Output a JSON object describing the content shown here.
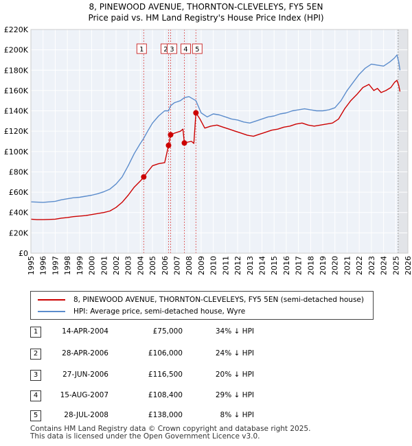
{
  "chart_data": {
    "type": "line",
    "title": "8, PINEWOOD AVENUE, THORNTON-CLEVELEYS, FY5 5EN",
    "subtitle": "Price paid vs. HM Land Registry's House Price Index (HPI)",
    "x_range": [
      1995,
      2026
    ],
    "ylim": [
      0,
      220000
    ],
    "y_ticks": [
      0,
      20000,
      40000,
      60000,
      80000,
      100000,
      120000,
      140000,
      160000,
      180000,
      200000,
      220000
    ],
    "y_tick_labels": [
      "£0",
      "£20K",
      "£40K",
      "£60K",
      "£80K",
      "£100K",
      "£120K",
      "£140K",
      "£160K",
      "£180K",
      "£200K",
      "£220K"
    ],
    "x_ticks": [
      "1995",
      "1996",
      "1997",
      "1998",
      "1999",
      "2000",
      "2001",
      "2002",
      "2003",
      "2004",
      "2005",
      "2006",
      "2007",
      "2008",
      "2009",
      "2010",
      "2011",
      "2012",
      "2013",
      "2014",
      "2015",
      "2016",
      "2017",
      "2018",
      "2019",
      "2020",
      "2021",
      "2022",
      "2023",
      "2024",
      "2025",
      "2026"
    ],
    "grid": true,
    "shaded_region_start": 2025.2,
    "series": [
      {
        "name": "8, PINEWOOD AVENUE, THORNTON-CLEVELEYS, FY5 5EN (semi-detached house)",
        "color": "#cc0000",
        "points": [
          [
            1995.0,
            33500
          ],
          [
            1995.5,
            33000
          ],
          [
            1996.0,
            33000
          ],
          [
            1996.5,
            33200
          ],
          [
            1997.0,
            33500
          ],
          [
            1997.5,
            34500
          ],
          [
            1998.0,
            35000
          ],
          [
            1998.5,
            36000
          ],
          [
            1999.0,
            36500
          ],
          [
            1999.5,
            37000
          ],
          [
            2000.0,
            38000
          ],
          [
            2000.5,
            39000
          ],
          [
            2001.0,
            40000
          ],
          [
            2001.5,
            41500
          ],
          [
            2002.0,
            45000
          ],
          [
            2002.5,
            50000
          ],
          [
            2003.0,
            57000
          ],
          [
            2003.5,
            65000
          ],
          [
            2004.0,
            71000
          ],
          [
            2004.28,
            75000
          ],
          [
            2004.6,
            80000
          ],
          [
            2005.0,
            86000
          ],
          [
            2005.5,
            88000
          ],
          [
            2006.0,
            89000
          ],
          [
            2006.32,
            106000
          ],
          [
            2006.49,
            116500
          ],
          [
            2006.8,
            118000
          ],
          [
            2007.3,
            120000
          ],
          [
            2007.5,
            122000
          ],
          [
            2007.62,
            108400
          ],
          [
            2007.8,
            109000
          ],
          [
            2008.2,
            110000
          ],
          [
            2008.4,
            108000
          ],
          [
            2008.57,
            138000
          ],
          [
            2008.9,
            132000
          ],
          [
            2009.3,
            123000
          ],
          [
            2009.8,
            125000
          ],
          [
            2010.3,
            126000
          ],
          [
            2010.8,
            124000
          ],
          [
            2011.3,
            122000
          ],
          [
            2011.8,
            120000
          ],
          [
            2012.3,
            118000
          ],
          [
            2012.8,
            116000
          ],
          [
            2013.3,
            115000
          ],
          [
            2013.8,
            117000
          ],
          [
            2014.3,
            119000
          ],
          [
            2014.8,
            121000
          ],
          [
            2015.3,
            122000
          ],
          [
            2015.8,
            124000
          ],
          [
            2016.3,
            125000
          ],
          [
            2016.8,
            127000
          ],
          [
            2017.3,
            128000
          ],
          [
            2017.8,
            126000
          ],
          [
            2018.3,
            125000
          ],
          [
            2018.8,
            126000
          ],
          [
            2019.3,
            127000
          ],
          [
            2019.8,
            128000
          ],
          [
            2020.3,
            132000
          ],
          [
            2020.8,
            142000
          ],
          [
            2021.3,
            150000
          ],
          [
            2021.8,
            156000
          ],
          [
            2022.3,
            163000
          ],
          [
            2022.8,
            166000
          ],
          [
            2023.2,
            160000
          ],
          [
            2023.5,
            162000
          ],
          [
            2023.8,
            158000
          ],
          [
            2024.2,
            160000
          ],
          [
            2024.6,
            163000
          ],
          [
            2024.9,
            168000
          ],
          [
            2025.1,
            170000
          ],
          [
            2025.25,
            165000
          ],
          [
            2025.35,
            159000
          ]
        ]
      },
      {
        "name": "HPI: Average price, semi-detached house, Wyre",
        "color": "#5b8ccc",
        "points": [
          [
            1995.0,
            50500
          ],
          [
            1995.5,
            50200
          ],
          [
            1996.0,
            50000
          ],
          [
            1996.5,
            50500
          ],
          [
            1997.0,
            51000
          ],
          [
            1997.5,
            52500
          ],
          [
            1998.0,
            53500
          ],
          [
            1998.5,
            54500
          ],
          [
            1999.0,
            55000
          ],
          [
            1999.5,
            56000
          ],
          [
            2000.0,
            57000
          ],
          [
            2000.5,
            58500
          ],
          [
            2001.0,
            60500
          ],
          [
            2001.5,
            63000
          ],
          [
            2002.0,
            68000
          ],
          [
            2002.5,
            75000
          ],
          [
            2003.0,
            86000
          ],
          [
            2003.5,
            98000
          ],
          [
            2004.0,
            108000
          ],
          [
            2004.28,
            113000
          ],
          [
            2004.6,
            120000
          ],
          [
            2005.0,
            128000
          ],
          [
            2005.5,
            135000
          ],
          [
            2006.0,
            140000
          ],
          [
            2006.32,
            140000
          ],
          [
            2006.49,
            145000
          ],
          [
            2006.8,
            148000
          ],
          [
            2007.3,
            150000
          ],
          [
            2007.62,
            153000
          ],
          [
            2008.0,
            154000
          ],
          [
            2008.57,
            150000
          ],
          [
            2009.0,
            138000
          ],
          [
            2009.5,
            134000
          ],
          [
            2010.0,
            137000
          ],
          [
            2010.5,
            136000
          ],
          [
            2011.0,
            134000
          ],
          [
            2011.5,
            132000
          ],
          [
            2012.0,
            131000
          ],
          [
            2012.5,
            129000
          ],
          [
            2013.0,
            128000
          ],
          [
            2013.5,
            130000
          ],
          [
            2014.0,
            132000
          ],
          [
            2014.5,
            134000
          ],
          [
            2015.0,
            135000
          ],
          [
            2015.5,
            137000
          ],
          [
            2016.0,
            138000
          ],
          [
            2016.5,
            140000
          ],
          [
            2017.0,
            141000
          ],
          [
            2017.5,
            142000
          ],
          [
            2018.0,
            141000
          ],
          [
            2018.5,
            140000
          ],
          [
            2019.0,
            140000
          ],
          [
            2019.5,
            141000
          ],
          [
            2020.0,
            143000
          ],
          [
            2020.5,
            150000
          ],
          [
            2021.0,
            160000
          ],
          [
            2021.5,
            168000
          ],
          [
            2022.0,
            176000
          ],
          [
            2022.5,
            182000
          ],
          [
            2023.0,
            186000
          ],
          [
            2023.5,
            185000
          ],
          [
            2024.0,
            184000
          ],
          [
            2024.5,
            188000
          ],
          [
            2024.9,
            192000
          ],
          [
            2025.1,
            195000
          ],
          [
            2025.25,
            188000
          ],
          [
            2025.35,
            180000
          ]
        ]
      }
    ],
    "transactions": [
      {
        "id": "1",
        "x": 2004.28,
        "value": 75000,
        "date": "14-APR-2004",
        "price": "£75,000",
        "hpi": "34% ↓ HPI"
      },
      {
        "id": "2",
        "x": 2006.32,
        "value": 106000,
        "date": "28-APR-2006",
        "price": "£106,000",
        "hpi": "24% ↓ HPI"
      },
      {
        "id": "3",
        "x": 2006.49,
        "value": 116500,
        "date": "27-JUN-2006",
        "price": "£116,500",
        "hpi": "20% ↓ HPI"
      },
      {
        "id": "4",
        "x": 2007.62,
        "value": 108400,
        "date": "15-AUG-2007",
        "price": "£108,400",
        "hpi": "29% ↓ HPI"
      },
      {
        "id": "5",
        "x": 2008.57,
        "value": 138000,
        "date": "28-JUL-2008",
        "price": "£138,000",
        "hpi": "8% ↓ HPI"
      }
    ]
  },
  "legend": {
    "items": [
      {
        "label": "8, PINEWOOD AVENUE, THORNTON-CLEVELEYS, FY5 5EN (semi-detached house)",
        "color": "#cc0000"
      },
      {
        "label": "HPI: Average price, semi-detached house, Wyre",
        "color": "#5b8ccc"
      }
    ]
  },
  "footer": {
    "line1": "Contains HM Land Registry data © Crown copyright and database right 2025.",
    "line2": "This data is licensed under the Open Government Licence v3.0."
  }
}
